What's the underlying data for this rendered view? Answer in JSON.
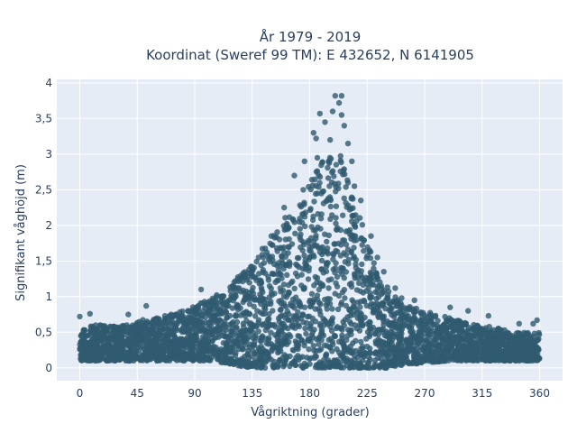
{
  "chart_data": {
    "type": "scatter",
    "title_line1": "År 1979 - 2019",
    "title_line2": "Koordinat (Sweref 99 TM): E 432652, N 6141905",
    "xlabel": "Vågriktning (grader)",
    "ylabel": "Signifikant våghöjd (m)",
    "xlim": [
      -18,
      378
    ],
    "ylim": [
      -0.18,
      4.05
    ],
    "xticks": [
      0,
      45,
      90,
      135,
      180,
      225,
      270,
      315,
      360
    ],
    "xtick_labels": [
      "0",
      "45",
      "90",
      "135",
      "180",
      "225",
      "270",
      "315",
      "360"
    ],
    "yticks": [
      0,
      0.5,
      1,
      1.5,
      2,
      2.5,
      3,
      3.5,
      4
    ],
    "ytick_labels": [
      "0",
      "0,5",
      "1",
      "1,5",
      "2",
      "2,5",
      "3",
      "3,5",
      "4"
    ],
    "grid": true,
    "marker_color": "#2f5a6f",
    "background_color": "#e5ecf6",
    "envelope": {
      "x": [
        0,
        10,
        20,
        30,
        40,
        50,
        60,
        70,
        80,
        90,
        100,
        110,
        120,
        130,
        140,
        150,
        160,
        170,
        180,
        190,
        200,
        205,
        210,
        220,
        230,
        240,
        250,
        260,
        270,
        280,
        290,
        300,
        310,
        320,
        330,
        340,
        350,
        360
      ],
      "y_max": [
        0.55,
        0.6,
        0.6,
        0.6,
        0.62,
        0.68,
        0.7,
        0.75,
        0.8,
        0.88,
        0.95,
        1.05,
        1.2,
        1.4,
        1.6,
        1.85,
        2.1,
        2.3,
        2.6,
        2.9,
        3.0,
        3.0,
        2.7,
        2.1,
        1.5,
        1.15,
        0.95,
        0.85,
        0.8,
        0.75,
        0.7,
        0.65,
        0.6,
        0.58,
        0.55,
        0.5,
        0.5,
        0.5
      ],
      "y_min": [
        0.1,
        0.1,
        0.1,
        0.1,
        0.1,
        0.1,
        0.1,
        0.1,
        0.1,
        0.1,
        0.1,
        0.08,
        0.05,
        0.0,
        0.0,
        0.0,
        0.0,
        0.0,
        0.0,
        0.0,
        0.0,
        0.0,
        0.0,
        0.0,
        0.0,
        0.0,
        0.03,
        0.05,
        0.08,
        0.08,
        0.1,
        0.1,
        0.1,
        0.1,
        0.1,
        0.1,
        0.1,
        0.1
      ]
    },
    "outliers": [
      {
        "x": 200,
        "y": 3.82
      },
      {
        "x": 205,
        "y": 3.82
      },
      {
        "x": 203,
        "y": 3.72
      },
      {
        "x": 198,
        "y": 3.6
      },
      {
        "x": 188,
        "y": 3.57
      },
      {
        "x": 205,
        "y": 3.55
      },
      {
        "x": 192,
        "y": 3.45
      },
      {
        "x": 207,
        "y": 3.4
      },
      {
        "x": 183,
        "y": 3.3
      },
      {
        "x": 196,
        "y": 3.2
      },
      {
        "x": 185,
        "y": 3.22
      },
      {
        "x": 210,
        "y": 3.15
      },
      {
        "x": 176,
        "y": 2.9
      },
      {
        "x": 215,
        "y": 2.55
      },
      {
        "x": 220,
        "y": 2.35
      },
      {
        "x": 168,
        "y": 2.7
      },
      {
        "x": 160,
        "y": 2.25
      },
      {
        "x": 150,
        "y": 1.85
      },
      {
        "x": 140,
        "y": 1.55
      },
      {
        "x": 134,
        "y": 1.42
      },
      {
        "x": 228,
        "y": 1.85
      },
      {
        "x": 233,
        "y": 1.55
      },
      {
        "x": 238,
        "y": 1.35
      },
      {
        "x": 247,
        "y": 1.12
      },
      {
        "x": 252,
        "y": 0.98
      },
      {
        "x": 262,
        "y": 0.95
      },
      {
        "x": 95,
        "y": 1.1
      },
      {
        "x": 107,
        "y": 1.0
      },
      {
        "x": 118,
        "y": 1.08
      },
      {
        "x": 124,
        "y": 1.25
      },
      {
        "x": 52,
        "y": 0.87
      },
      {
        "x": 8,
        "y": 0.76
      },
      {
        "x": 0,
        "y": 0.72
      },
      {
        "x": 38,
        "y": 0.75
      },
      {
        "x": 290,
        "y": 0.85
      },
      {
        "x": 304,
        "y": 0.8
      },
      {
        "x": 320,
        "y": 0.73
      },
      {
        "x": 344,
        "y": 0.62
      },
      {
        "x": 358,
        "y": 0.67
      },
      {
        "x": 355,
        "y": 0.62
      },
      {
        "x": 210,
        "y": 2.6
      },
      {
        "x": 213,
        "y": 2.9
      },
      {
        "x": 186,
        "y": 2.95
      },
      {
        "x": 175,
        "y": 2.5
      }
    ]
  }
}
